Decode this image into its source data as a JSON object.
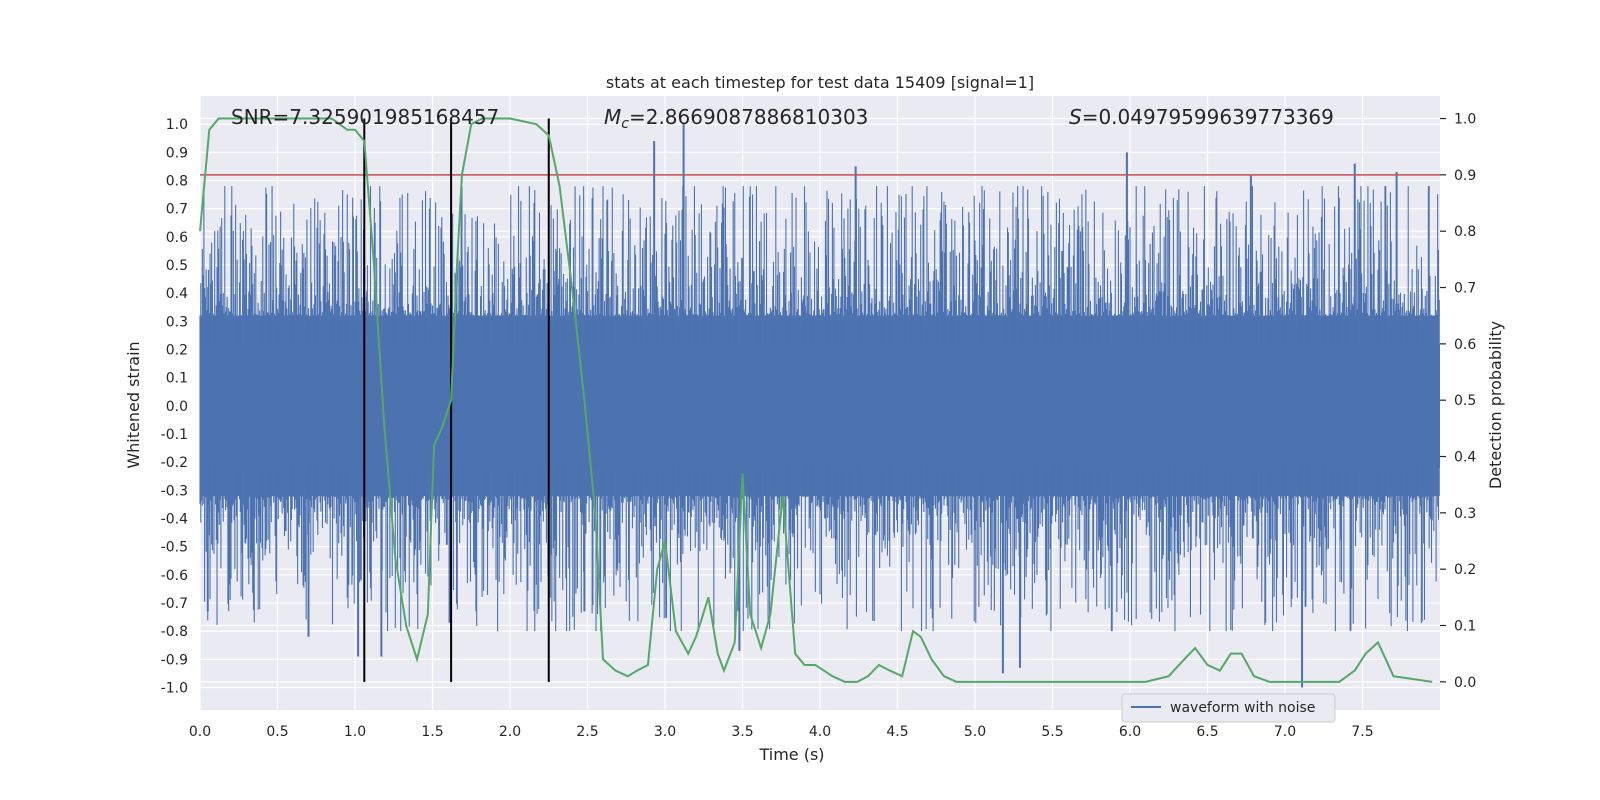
{
  "chart_data": {
    "type": "line",
    "title": "stats at each timestep for test data 15409 [signal=1]",
    "xlabel": "Time (s)",
    "ylabel": "Whitened strain",
    "y2label": "Detection probability",
    "xlim": [
      0.0,
      8.0
    ],
    "ylim": [
      -1.08,
      1.1
    ],
    "y2lim": [
      -0.05,
      1.04
    ],
    "xticks": [
      "0.0",
      "0.5",
      "1.0",
      "1.5",
      "2.0",
      "2.5",
      "3.0",
      "3.5",
      "4.0",
      "4.5",
      "5.0",
      "5.5",
      "6.0",
      "6.5",
      "7.0",
      "7.5"
    ],
    "xtick_values": [
      0.0,
      0.5,
      1.0,
      1.5,
      2.0,
      2.5,
      3.0,
      3.5,
      4.0,
      4.5,
      5.0,
      5.5,
      6.0,
      6.5,
      7.0,
      7.5
    ],
    "yticks": [
      "1.0",
      "0.9",
      "0.8",
      "0.7",
      "0.6",
      "0.5",
      "0.4",
      "0.3",
      "0.2",
      "0.1",
      "0.0",
      "-0.1",
      "-0.2",
      "-0.3",
      "-0.4",
      "-0.5",
      "-0.6",
      "-0.7",
      "-0.8",
      "-0.9",
      "-1.0"
    ],
    "ytick_values": [
      1.0,
      0.9,
      0.8,
      0.7,
      0.6,
      0.5,
      0.4,
      0.3,
      0.2,
      0.1,
      0.0,
      -0.1,
      -0.2,
      -0.3,
      -0.4,
      -0.5,
      -0.6,
      -0.7,
      -0.8,
      -0.9,
      -1.0
    ],
    "y2ticks": [
      "1.0",
      "0.9",
      "0.8",
      "0.7",
      "0.6",
      "0.5",
      "0.4",
      "0.3",
      "0.2",
      "0.1",
      "0.0"
    ],
    "y2tick_values": [
      1.0,
      0.9,
      0.8,
      0.7,
      0.6,
      0.5,
      0.4,
      0.3,
      0.2,
      0.1,
      0.0
    ],
    "annotations": {
      "snr": "SNR=7.325901985168457",
      "mc_symbol": "M",
      "mc_sub": "c",
      "mc_value": "=2.8669087886810303",
      "s_symbol": "S",
      "s_value": "=0.04979599639773369"
    },
    "threshold": 0.9,
    "vlines": [
      1.06,
      1.62,
      2.25
    ],
    "legend": {
      "label": "waveform with noise",
      "loc": "lower-right"
    },
    "waveform": {
      "name": "waveform with noise",
      "n": 1600,
      "duration": 8.0,
      "amplitude": 0.22,
      "color": "#4c72b0"
    },
    "spikes": [
      {
        "t": 2.93,
        "v": 0.94
      },
      {
        "t": 3.12,
        "v": 1.0
      },
      {
        "t": 4.23,
        "v": 0.85
      },
      {
        "t": 5.98,
        "v": 0.9
      },
      {
        "t": 6.78,
        "v": 0.82
      },
      {
        "t": 7.45,
        "v": 0.86
      },
      {
        "t": 7.72,
        "v": 0.83
      },
      {
        "t": 5.18,
        "v": -0.95
      },
      {
        "t": 5.29,
        "v": -0.93
      },
      {
        "t": 7.11,
        "v": -1.0
      },
      {
        "t": 1.02,
        "v": -0.89
      },
      {
        "t": 1.17,
        "v": -0.89
      },
      {
        "t": 1.61,
        "v": -0.77
      },
      {
        "t": 3.48,
        "v": -0.87
      },
      {
        "t": 0.7,
        "v": -0.82
      },
      {
        "t": 0.05,
        "v": -0.73
      },
      {
        "t": 2.48,
        "v": -0.73
      }
    ],
    "series": [
      {
        "name": "Detection probability",
        "color": "#55a868",
        "x": [
          0.0,
          0.06,
          0.12,
          0.4,
          0.85,
          0.95,
          1.0,
          1.06,
          1.12,
          1.19,
          1.26,
          1.33,
          1.4,
          1.47,
          1.51,
          1.56,
          1.62,
          1.66,
          1.69,
          1.75,
          1.82,
          2.0,
          2.17,
          2.25,
          2.32,
          2.4,
          2.48,
          2.55,
          2.6,
          2.68,
          2.76,
          2.82,
          2.89,
          2.95,
          3.0,
          3.07,
          3.15,
          3.2,
          3.28,
          3.34,
          3.38,
          3.45,
          3.5,
          3.55,
          3.62,
          3.68,
          3.76,
          3.84,
          3.9,
          3.97,
          4.08,
          4.16,
          4.24,
          4.31,
          4.38,
          4.45,
          4.53,
          4.6,
          4.65,
          4.72,
          4.8,
          4.88,
          5.0,
          5.1,
          5.3,
          5.5,
          5.7,
          5.9,
          6.1,
          6.25,
          6.35,
          6.42,
          6.5,
          6.58,
          6.65,
          6.72,
          6.8,
          6.9,
          7.0,
          7.2,
          7.35,
          7.45,
          7.52,
          7.6,
          7.7,
          7.95
        ],
        "values": [
          0.8,
          0.98,
          1.0,
          1.0,
          1.0,
          0.98,
          0.98,
          0.96,
          0.75,
          0.45,
          0.22,
          0.1,
          0.04,
          0.12,
          0.42,
          0.45,
          0.5,
          0.75,
          0.9,
          0.99,
          1.0,
          1.0,
          0.99,
          0.97,
          0.88,
          0.7,
          0.5,
          0.3,
          0.04,
          0.02,
          0.01,
          0.02,
          0.03,
          0.2,
          0.25,
          0.09,
          0.05,
          0.08,
          0.15,
          0.05,
          0.02,
          0.07,
          0.37,
          0.12,
          0.06,
          0.12,
          0.33,
          0.05,
          0.03,
          0.03,
          0.01,
          0.0,
          0.0,
          0.01,
          0.03,
          0.02,
          0.01,
          0.09,
          0.08,
          0.04,
          0.01,
          0.0,
          0.0,
          0.0,
          0.0,
          0.0,
          0.0,
          0.0,
          0.0,
          0.01,
          0.04,
          0.06,
          0.03,
          0.02,
          0.05,
          0.05,
          0.01,
          0.0,
          0.0,
          0.0,
          0.0,
          0.02,
          0.05,
          0.07,
          0.01,
          0.0
        ]
      }
    ]
  }
}
